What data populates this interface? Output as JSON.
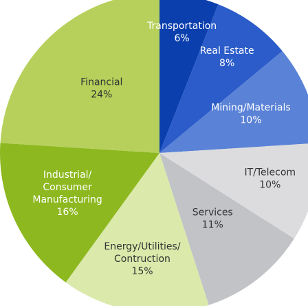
{
  "chart_data": {
    "type": "pie",
    "categories": [
      "Transportation",
      "Real Estate",
      "Mining/Materials",
      "IT/Telecom",
      "Services",
      "Energy/Utilities/\nContruction",
      "Industrial/\nConsumer\nManufacturing",
      "Financial"
    ],
    "values": [
      6,
      8,
      10,
      10,
      11,
      15,
      16,
      24
    ],
    "value_labels": [
      "6%",
      "8%",
      "10%",
      "10%",
      "11%",
      "15%",
      "16%",
      "24%"
    ],
    "colors": [
      "#0b3fae",
      "#2b5cc9",
      "#5a82d6",
      "#dcdcdf",
      "#c2c3c7",
      "#dbe9ab",
      "#8db81f",
      "#b6d05b"
    ],
    "label_colors": [
      "#ffffff",
      "#ffffff",
      "#ffffff",
      "#333333",
      "#333333",
      "#333333",
      "#ffffff",
      "#333333"
    ]
  }
}
